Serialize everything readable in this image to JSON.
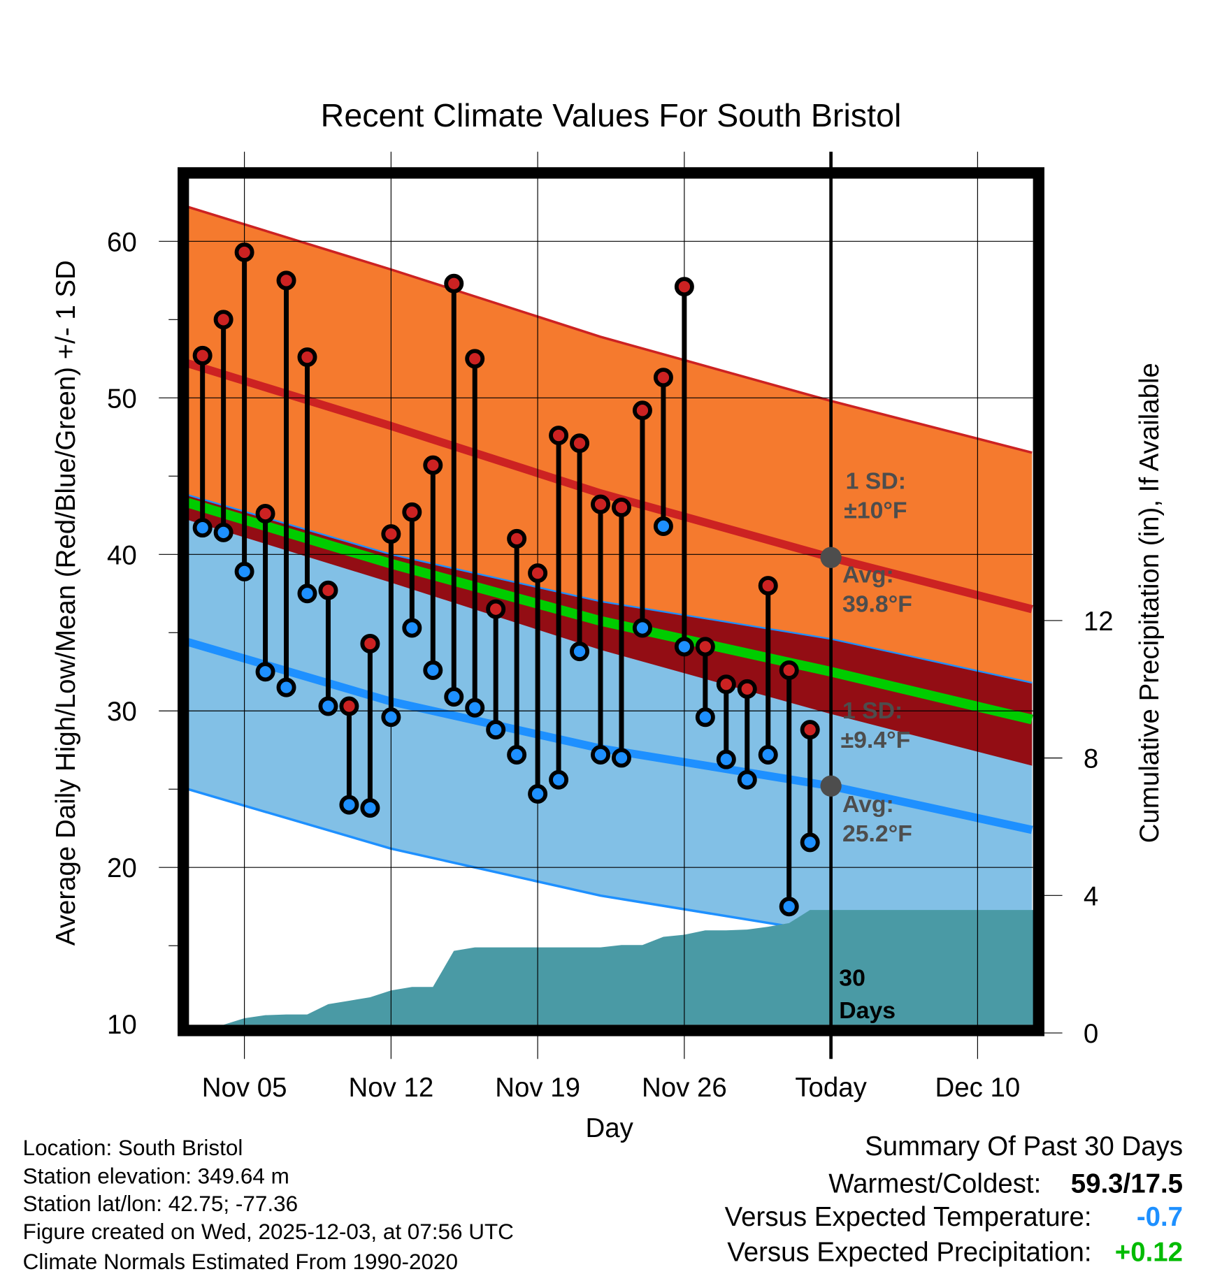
{
  "chart_data": {
    "type": "line",
    "title": "Recent Climate Values For South Bristol",
    "xlabel": "Day",
    "ylabel": "Average Daily High/Low/Mean (Red/Blue/Green) +/- 1 SD",
    "y2label": "Cumulative Precipitation (in), If Available",
    "ylim": [
      10,
      64
    ],
    "y2lim": [
      0,
      15
    ],
    "yticks": [
      "10",
      "20",
      "30",
      "40",
      "50",
      "60"
    ],
    "y2ticks": [
      "0",
      "4",
      "8",
      "12"
    ],
    "xticks": [
      "Nov 05",
      "Nov 12",
      "Nov 19",
      "Nov 26",
      "Today",
      "Dec 10"
    ],
    "xtick_days": [
      5,
      12,
      19,
      26,
      33,
      40
    ],
    "day_note": "day number counted from Nov 01 = 1; Today = Dec 03",
    "x_range_days": [
      2.3,
      42.6
    ],
    "days": [
      "Nov 03",
      "Nov 04",
      "Nov 05",
      "Nov 06",
      "Nov 07",
      "Nov 08",
      "Nov 09",
      "Nov 10",
      "Nov 11",
      "Nov 12",
      "Nov 13",
      "Nov 14",
      "Nov 15",
      "Nov 16",
      "Nov 17",
      "Nov 18",
      "Nov 19",
      "Nov 20",
      "Nov 21",
      "Nov 22",
      "Nov 23",
      "Nov 24",
      "Nov 25",
      "Nov 26",
      "Nov 27",
      "Nov 28",
      "Nov 29",
      "Nov 30",
      "Dec 01",
      "Dec 02"
    ],
    "day_numbers": [
      3,
      4,
      5,
      6,
      7,
      8,
      9,
      10,
      11,
      12,
      13,
      14,
      15,
      16,
      17,
      18,
      19,
      20,
      21,
      22,
      23,
      24,
      25,
      26,
      27,
      28,
      29,
      30,
      31,
      32
    ],
    "series": [
      {
        "name": "Daily High",
        "color": "#cc2222",
        "values": [
          52.7,
          55.0,
          59.3,
          42.6,
          57.5,
          52.6,
          37.7,
          30.3,
          34.3,
          41.3,
          42.7,
          45.7,
          57.3,
          52.5,
          36.5,
          41.0,
          38.8,
          47.6,
          47.1,
          43.2,
          43.0,
          49.2,
          51.3,
          57.1,
          34.1,
          31.7,
          31.4,
          38.0,
          32.6,
          28.8
        ]
      },
      {
        "name": "Daily Low",
        "color": "#1e90ff",
        "values": [
          41.7,
          41.4,
          38.9,
          32.5,
          31.5,
          37.5,
          30.3,
          24.0,
          23.8,
          29.6,
          35.3,
          32.6,
          30.9,
          30.2,
          28.8,
          27.2,
          24.7,
          25.6,
          33.8,
          27.2,
          27.0,
          35.3,
          41.8,
          34.1,
          29.6,
          26.9,
          25.6,
          27.2,
          17.5,
          21.6
        ]
      },
      {
        "name": "Cumulative Precipitation",
        "color": "#4a9aa5",
        "values": [
          0,
          0,
          0.19,
          0.28,
          0.3,
          0.3,
          0.6,
          0.7,
          0.8,
          1.0,
          1.1,
          1.1,
          2.15,
          2.25,
          2.25,
          2.25,
          2.25,
          2.25,
          2.25,
          2.25,
          2.32,
          2.32,
          2.56,
          2.62,
          2.75,
          2.75,
          2.77,
          2.85,
          2.96,
          3.34
        ]
      }
    ],
    "normals": {
      "day_numbers": [
        2.3,
        12,
        22,
        33,
        42.6
      ],
      "avg_high": [
        52.2,
        48.2,
        43.9,
        39.8,
        36.5
      ],
      "avg_low": [
        34.4,
        30.6,
        27.6,
        25.2,
        22.4
      ],
      "high_sd": 10,
      "low_sd": 9.4,
      "colors": {
        "high_band": "#f57a2e",
        "low_band": "#82c0e6",
        "overlap": "#930d14",
        "avg_high": "#cc2222",
        "avg_low": "#1e90ff",
        "mean": "#00cc00"
      }
    },
    "annotations": {
      "high_sd_label1": "1 SD:",
      "high_sd_label2": "±10°F",
      "high_avg_label1": "Avg:",
      "high_avg_label2": "39.8°F",
      "low_sd_label1": "1 SD:",
      "low_sd_label2": "±9.4°F",
      "low_avg_label1": "Avg:",
      "low_avg_label2": "25.2°F",
      "days_label1": "30",
      "days_label2": "Days"
    },
    "grid": true
  },
  "footer": {
    "location": "Location: South Bristol",
    "elevation": "Station elevation: 349.64 m",
    "latlon": "Station lat/lon: 42.75; -77.36",
    "created": "Figure created on Wed, 2025-12-03, at 07:56 UTC",
    "normals": "Climate Normals Estimated From 1990-2020"
  },
  "summary": {
    "title": "Summary Of Past 30 Days",
    "warmest_label": "Warmest/Coldest:",
    "warmest_value": "59.3/17.5",
    "temp_label": "Versus Expected Temperature:",
    "temp_value": "-0.7",
    "temp_color": "#1e90ff",
    "precip_label": "Versus Expected Precipitation:",
    "precip_value": "+0.12",
    "precip_color": "#00bb00"
  }
}
